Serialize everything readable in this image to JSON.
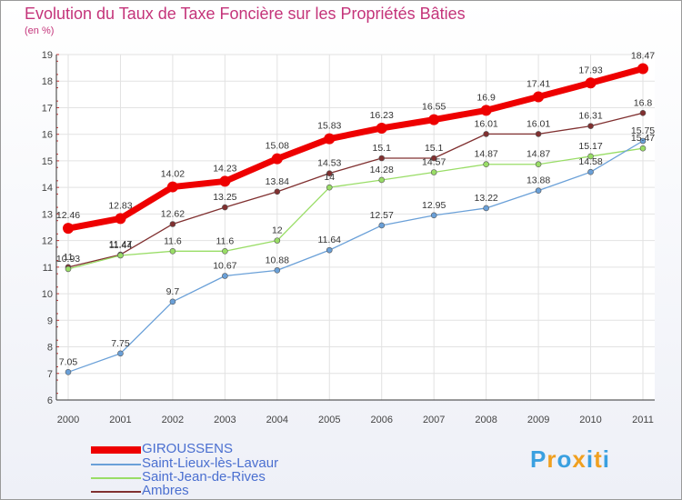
{
  "chart_data": {
    "type": "line",
    "title": "Evolution du Taux de Taxe Foncière sur les Propriétés Bâties",
    "subtitle": "(en %)",
    "xlabel": "",
    "ylabel": "",
    "x": [
      "2000",
      "2001",
      "2002",
      "2003",
      "2004",
      "2005",
      "2006",
      "2007",
      "2008",
      "2009",
      "2010",
      "2011"
    ],
    "ylim": [
      6,
      19
    ],
    "yticks": [
      "6",
      "7",
      "8",
      "9",
      "10",
      "11",
      "12",
      "13",
      "14",
      "15",
      "16",
      "17",
      "18",
      "19"
    ],
    "grid": true,
    "legend_position": "bottom-left",
    "series": [
      {
        "name": "GIROUSSENS",
        "color": "#ee0000",
        "values": [
          12.46,
          12.83,
          14.02,
          14.23,
          15.08,
          15.83,
          16.23,
          16.55,
          16.9,
          17.41,
          17.93,
          18.47
        ],
        "labels": [
          "12.46",
          "12.83",
          "14.02",
          "14.23",
          "15.08",
          "15.83",
          "16.23",
          "16.55",
          "16.9",
          "17.41",
          "17.93",
          "18.47"
        ]
      },
      {
        "name": "Saint-Lieux-lès-Lavaur",
        "color": "#6aa0d8",
        "values": [
          7.05,
          7.75,
          9.7,
          10.67,
          10.88,
          11.64,
          12.57,
          12.95,
          13.22,
          13.88,
          14.58,
          15.75
        ],
        "labels": [
          "7.05",
          "7.75",
          "9.7",
          "10.67",
          "10.88",
          "11.64",
          "12.57",
          "12.95",
          "13.22",
          "13.88",
          "14.58",
          "15.75"
        ]
      },
      {
        "name": "Saint-Jean-de-Rives",
        "color": "#99dd66",
        "values": [
          10.93,
          11.44,
          11.6,
          11.6,
          12,
          14,
          14.28,
          14.57,
          14.87,
          14.87,
          15.17,
          15.47
        ],
        "labels": [
          "10.93",
          "11.44",
          "11.6",
          "11.6",
          "12",
          "14",
          "14.28",
          "14.57",
          "14.87",
          "14.87",
          "15.17",
          "15.47"
        ]
      },
      {
        "name": "Ambres",
        "color": "#803030",
        "values": [
          11,
          11.47,
          12.62,
          13.25,
          13.84,
          14.53,
          15.1,
          15.1,
          16.01,
          16.01,
          16.31,
          16.8
        ],
        "labels": [
          "11",
          "11.47",
          "12.62",
          "13.25",
          "13.84",
          "14.53",
          "15.1",
          "15.1",
          "16.01",
          "16.01",
          "16.31",
          "16.8"
        ]
      }
    ]
  },
  "brand": {
    "letters": [
      "P",
      "r",
      "o",
      "x",
      "i",
      "t",
      "i"
    ],
    "colors": [
      "#3aa0e0",
      "#f0a020",
      "#3aa0e0",
      "#f0a020",
      "#3aa0e0",
      "#f0a020",
      "#3aa0e0"
    ]
  }
}
